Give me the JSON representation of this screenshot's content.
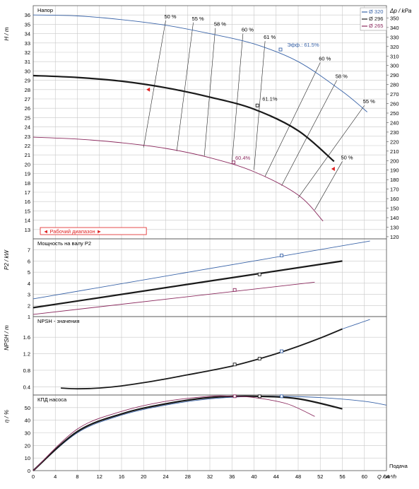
{
  "colors": {
    "d320": "#3a64a8",
    "d296": "#1a1a1a",
    "d265": "#8b2a5e",
    "grid": "#c8c8c8",
    "red": "#e02020"
  },
  "chart_data": [
    {
      "id": "head",
      "type": "line",
      "title": "Напор",
      "ylabel": "H / m",
      "ylabel_right": "Δp / kPa",
      "xlim": [
        0,
        64
      ],
      "ylim": [
        12,
        37
      ],
      "yticks": [
        13,
        14,
        15,
        16,
        17,
        18,
        19,
        20,
        21,
        22,
        23,
        24,
        25,
        26,
        27,
        28,
        29,
        30,
        31,
        32,
        33,
        34,
        35,
        36
      ],
      "yticks_right": [
        120,
        130,
        140,
        150,
        160,
        170,
        180,
        190,
        200,
        210,
        220,
        230,
        240,
        250,
        260,
        270,
        280,
        290,
        300,
        310,
        320,
        330,
        340,
        350,
        360
      ],
      "legend": [
        "Ø 320",
        "Ø 296",
        "Ø 265"
      ],
      "operating_range_label": "Рабочий диапазон",
      "series": [
        {
          "name": "Ø 320",
          "x": [
            0,
            8,
            16,
            24,
            32,
            40,
            48,
            56,
            60.5
          ],
          "values": [
            36.0,
            35.9,
            35.5,
            34.9,
            34.0,
            32.9,
            31.0,
            27.8,
            25.6
          ]
        },
        {
          "name": "Ø 296",
          "x": [
            0,
            8,
            16,
            24,
            32,
            40,
            48,
            54.5
          ],
          "values": [
            29.5,
            29.3,
            28.9,
            28.2,
            27.2,
            25.9,
            23.6,
            20.3
          ]
        },
        {
          "name": "Ø 265",
          "x": [
            0,
            8,
            16,
            24,
            32,
            40,
            48,
            52.5
          ],
          "values": [
            22.9,
            22.7,
            22.3,
            21.7,
            20.7,
            19.2,
            16.7,
            13.9
          ]
        }
      ],
      "iso_lines": [
        {
          "label": "50 %",
          "x": [
            20,
            24
          ],
          "values": [
            21.8,
            35.4
          ]
        },
        {
          "label": "55 %",
          "x": [
            26,
            29
          ],
          "values": [
            21.4,
            35.2
          ]
        },
        {
          "label": "58 %",
          "x": [
            31,
            33
          ],
          "values": [
            20.9,
            34.6
          ]
        },
        {
          "label": "60 %",
          "x": [
            36,
            38
          ],
          "values": [
            20.2,
            34.0
          ]
        },
        {
          "label": "61 %",
          "x": [
            40,
            42
          ],
          "values": [
            19.4,
            33.2
          ]
        },
        {
          "label": "60 %",
          "x": [
            42,
            52
          ],
          "values": [
            18.7,
            30.9
          ]
        },
        {
          "label": "58 %",
          "x": [
            45,
            55
          ],
          "values": [
            17.7,
            29.0
          ]
        },
        {
          "label": "55 %",
          "x": [
            48,
            60
          ],
          "values": [
            16.4,
            26.3
          ]
        },
        {
          "label": "50 %",
          "x": [
            51,
            56
          ],
          "values": [
            15.1,
            20.3
          ]
        }
      ],
      "annotations": [
        "Эфф.: 61.5%",
        "61.1%",
        "60.4%"
      ]
    },
    {
      "id": "power",
      "type": "line",
      "title": "Мощность на валу P2",
      "ylabel": "P2 / kW",
      "xlim": [
        0,
        64
      ],
      "ylim": [
        1,
        8
      ],
      "yticks": [
        1,
        2,
        3,
        4,
        5,
        6,
        7
      ],
      "series": [
        {
          "name": "Ø 320",
          "x": [
            0,
            61
          ],
          "values": [
            2.6,
            7.8
          ]
        },
        {
          "name": "Ø 296",
          "x": [
            0,
            56
          ],
          "values": [
            1.8,
            6.0
          ]
        },
        {
          "name": "Ø 265",
          "x": [
            0,
            51
          ],
          "values": [
            1.2,
            4.1
          ]
        }
      ]
    },
    {
      "id": "npsh",
      "type": "line",
      "title": "NPSH - значения",
      "ylabel": "NPSH / m",
      "xlim": [
        0,
        64
      ],
      "ylim": [
        0.2,
        2.1
      ],
      "yticks": [
        0.4,
        0.8,
        1.2,
        1.6
      ],
      "series": [
        {
          "name": "Ø 296",
          "x": [
            5,
            8,
            12,
            16,
            20,
            24,
            28,
            32,
            36,
            40,
            44,
            48,
            52,
            56
          ],
          "values": [
            0.37,
            0.35,
            0.37,
            0.42,
            0.5,
            0.59,
            0.69,
            0.79,
            0.9,
            1.04,
            1.2,
            1.38,
            1.58,
            1.8
          ]
        },
        {
          "name": "Ø 320",
          "x": [
            56,
            61
          ],
          "values": [
            1.8,
            2.03
          ]
        }
      ]
    },
    {
      "id": "efficiency",
      "type": "line",
      "title": "КПД насоса",
      "ylabel": "η / %",
      "xlabel": "Q / m³/h",
      "xlim": [
        0,
        64
      ],
      "ylim": [
        0,
        60
      ],
      "xticks": [
        0,
        4,
        8,
        12,
        16,
        20,
        24,
        28,
        32,
        36,
        40,
        44,
        48,
        52,
        56,
        60,
        64
      ],
      "yticks": [
        0,
        10,
        20,
        30,
        40,
        50
      ],
      "right_label": "Подача",
      "series": [
        {
          "name": "Ø 320",
          "x": [
            0,
            8,
            16,
            24,
            32,
            40,
            45,
            52,
            60,
            64
          ],
          "values": [
            0,
            30,
            44,
            52,
            57,
            59,
            59,
            58,
            55,
            52
          ]
        },
        {
          "name": "Ø 296",
          "x": [
            0,
            8,
            16,
            24,
            32,
            40,
            48,
            56
          ],
          "values": [
            0,
            31,
            45,
            53,
            58,
            59,
            57,
            49
          ]
        },
        {
          "name": "Ø 265",
          "x": [
            0,
            8,
            16,
            24,
            32,
            36,
            40,
            46,
            51
          ],
          "values": [
            0,
            33,
            47,
            55,
            59,
            59,
            58,
            53,
            43
          ]
        }
      ]
    }
  ]
}
